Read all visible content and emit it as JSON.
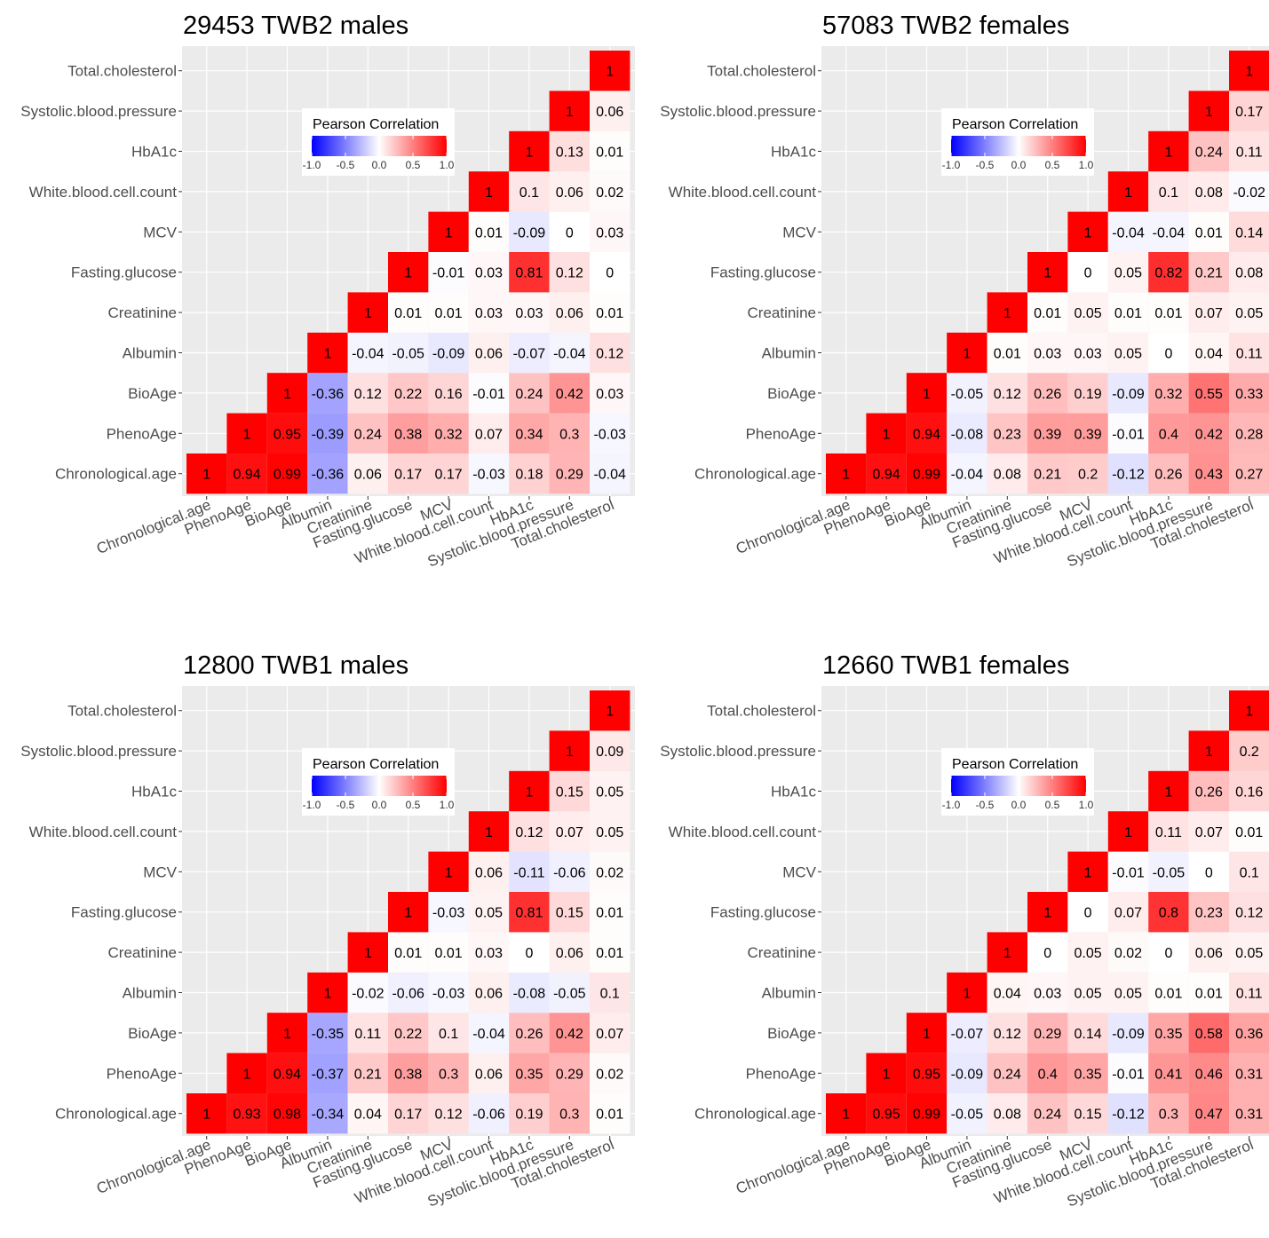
{
  "chart_data": [
    {
      "type": "heatmap",
      "title": "29453 TWB2 males",
      "variables": [
        "Chronological.age",
        "PhenoAge",
        "BioAge",
        "Albumin",
        "Creatinine",
        "Fasting.glucose",
        "MCV",
        "White.blood.cell.count",
        "HbA1c",
        "Systolic.blood.pressure",
        "Total.cholesterol"
      ],
      "values": [
        [
          "1",
          "0.94",
          "0.99",
          "-0.36",
          "0.06",
          "0.17",
          "0.17",
          "-0.03",
          "0.18",
          "0.29",
          "-0.04"
        ],
        [
          null,
          "1",
          "0.95",
          "-0.39",
          "0.24",
          "0.38",
          "0.32",
          "0.07",
          "0.34",
          "0.3",
          "-0.03"
        ],
        [
          null,
          null,
          "1",
          "-0.36",
          "0.12",
          "0.22",
          "0.16",
          "-0.01",
          "0.24",
          "0.42",
          "0.03"
        ],
        [
          null,
          null,
          null,
          "1",
          "-0.04",
          "-0.05",
          "-0.09",
          "0.06",
          "-0.07",
          "-0.04",
          "0.12"
        ],
        [
          null,
          null,
          null,
          null,
          "1",
          "0.01",
          "0.01",
          "0.03",
          "0.03",
          "0.06",
          "0.01"
        ],
        [
          null,
          null,
          null,
          null,
          null,
          "1",
          "-0.01",
          "0.03",
          "0.81",
          "0.12",
          "0"
        ],
        [
          null,
          null,
          null,
          null,
          null,
          null,
          "1",
          "0.01",
          "-0.09",
          "0",
          "0.03"
        ],
        [
          null,
          null,
          null,
          null,
          null,
          null,
          null,
          "1",
          "0.1",
          "0.06",
          "0.02"
        ],
        [
          null,
          null,
          null,
          null,
          null,
          null,
          null,
          null,
          "1",
          "0.13",
          "0.01"
        ],
        [
          null,
          null,
          null,
          null,
          null,
          null,
          null,
          null,
          null,
          "1",
          "0.06"
        ],
        [
          null,
          null,
          null,
          null,
          null,
          null,
          null,
          null,
          null,
          null,
          "1"
        ]
      ],
      "legend": {
        "title": "Pearson Correlation",
        "ticks": [
          "-1.0",
          "-0.5",
          "0.0",
          "0.5",
          "1.0"
        ],
        "range": [
          -1,
          1
        ]
      }
    },
    {
      "type": "heatmap",
      "title": "57083 TWB2 females",
      "variables": [
        "Chronological.age",
        "PhenoAge",
        "BioAge",
        "Albumin",
        "Creatinine",
        "Fasting.glucose",
        "MCV",
        "White.blood.cell.count",
        "HbA1c",
        "Systolic.blood.pressure",
        "Total.cholesterol"
      ],
      "values": [
        [
          "1",
          "0.94",
          "0.99",
          "-0.04",
          "0.08",
          "0.21",
          "0.2",
          "-0.12",
          "0.26",
          "0.43",
          "0.27"
        ],
        [
          null,
          "1",
          "0.94",
          "-0.08",
          "0.23",
          "0.39",
          "0.39",
          "-0.01",
          "0.4",
          "0.42",
          "0.28"
        ],
        [
          null,
          null,
          "1",
          "-0.05",
          "0.12",
          "0.26",
          "0.19",
          "-0.09",
          "0.32",
          "0.55",
          "0.33"
        ],
        [
          null,
          null,
          null,
          "1",
          "0.01",
          "0.03",
          "0.03",
          "0.05",
          "0",
          "0.04",
          "0.11"
        ],
        [
          null,
          null,
          null,
          null,
          "1",
          "0.01",
          "0.05",
          "0.01",
          "0.01",
          "0.07",
          "0.05"
        ],
        [
          null,
          null,
          null,
          null,
          null,
          "1",
          "0",
          "0.05",
          "0.82",
          "0.21",
          "0.08"
        ],
        [
          null,
          null,
          null,
          null,
          null,
          null,
          "1",
          "-0.04",
          "-0.04",
          "0.01",
          "0.14"
        ],
        [
          null,
          null,
          null,
          null,
          null,
          null,
          null,
          "1",
          "0.1",
          "0.08",
          "-0.02"
        ],
        [
          null,
          null,
          null,
          null,
          null,
          null,
          null,
          null,
          "1",
          "0.24",
          "0.11"
        ],
        [
          null,
          null,
          null,
          null,
          null,
          null,
          null,
          null,
          null,
          "1",
          "0.17"
        ],
        [
          null,
          null,
          null,
          null,
          null,
          null,
          null,
          null,
          null,
          null,
          "1"
        ]
      ],
      "legend": {
        "title": "Pearson Correlation",
        "ticks": [
          "-1.0",
          "-0.5",
          "0.0",
          "0.5",
          "1.0"
        ],
        "range": [
          -1,
          1
        ]
      }
    },
    {
      "type": "heatmap",
      "title": "12800 TWB1 males",
      "variables": [
        "Chronological.age",
        "PhenoAge",
        "BioAge",
        "Albumin",
        "Creatinine",
        "Fasting.glucose",
        "MCV",
        "White.blood.cell.count",
        "HbA1c",
        "Systolic.blood.pressure",
        "Total.cholesterol"
      ],
      "values": [
        [
          "1",
          "0.93",
          "0.98",
          "-0.34",
          "0.04",
          "0.17",
          "0.12",
          "-0.06",
          "0.19",
          "0.3",
          "0.01"
        ],
        [
          null,
          "1",
          "0.94",
          "-0.37",
          "0.21",
          "0.38",
          "0.3",
          "0.06",
          "0.35",
          "0.29",
          "0.02"
        ],
        [
          null,
          null,
          "1",
          "-0.35",
          "0.11",
          "0.22",
          "0.1",
          "-0.04",
          "0.26",
          "0.42",
          "0.07"
        ],
        [
          null,
          null,
          null,
          "1",
          "-0.02",
          "-0.06",
          "-0.03",
          "0.06",
          "-0.08",
          "-0.05",
          "0.1"
        ],
        [
          null,
          null,
          null,
          null,
          "1",
          "0.01",
          "0.01",
          "0.03",
          "0",
          "0.06",
          "0.01"
        ],
        [
          null,
          null,
          null,
          null,
          null,
          "1",
          "-0.03",
          "0.05",
          "0.81",
          "0.15",
          "0.01"
        ],
        [
          null,
          null,
          null,
          null,
          null,
          null,
          "1",
          "0.06",
          "-0.11",
          "-0.06",
          "0.02"
        ],
        [
          null,
          null,
          null,
          null,
          null,
          null,
          null,
          "1",
          "0.12",
          "0.07",
          "0.05"
        ],
        [
          null,
          null,
          null,
          null,
          null,
          null,
          null,
          null,
          "1",
          "0.15",
          "0.05"
        ],
        [
          null,
          null,
          null,
          null,
          null,
          null,
          null,
          null,
          null,
          "1",
          "0.09"
        ],
        [
          null,
          null,
          null,
          null,
          null,
          null,
          null,
          null,
          null,
          null,
          "1"
        ]
      ],
      "legend": {
        "title": "Pearson Correlation",
        "ticks": [
          "-1.0",
          "-0.5",
          "0.0",
          "0.5",
          "1.0"
        ],
        "range": [
          -1,
          1
        ]
      }
    },
    {
      "type": "heatmap",
      "title": "12660 TWB1 females",
      "variables": [
        "Chronological.age",
        "PhenoAge",
        "BioAge",
        "Albumin",
        "Creatinine",
        "Fasting.glucose",
        "MCV",
        "White.blood.cell.count",
        "HbA1c",
        "Systolic.blood.pressure",
        "Total.cholesterol"
      ],
      "values": [
        [
          "1",
          "0.95",
          "0.99",
          "-0.05",
          "0.08",
          "0.24",
          "0.15",
          "-0.12",
          "0.3",
          "0.47",
          "0.31"
        ],
        [
          null,
          "1",
          "0.95",
          "-0.09",
          "0.24",
          "0.4",
          "0.35",
          "-0.01",
          "0.41",
          "0.46",
          "0.31"
        ],
        [
          null,
          null,
          "1",
          "-0.07",
          "0.12",
          "0.29",
          "0.14",
          "-0.09",
          "0.35",
          "0.58",
          "0.36"
        ],
        [
          null,
          null,
          null,
          "1",
          "0.04",
          "0.03",
          "0.05",
          "0.05",
          "0.01",
          "0.01",
          "0.11"
        ],
        [
          null,
          null,
          null,
          null,
          "1",
          "0",
          "0.05",
          "0.02",
          "0",
          "0.06",
          "0.05"
        ],
        [
          null,
          null,
          null,
          null,
          null,
          "1",
          "0",
          "0.07",
          "0.8",
          "0.23",
          "0.12"
        ],
        [
          null,
          null,
          null,
          null,
          null,
          null,
          "1",
          "-0.01",
          "-0.05",
          "0",
          "0.1"
        ],
        [
          null,
          null,
          null,
          null,
          null,
          null,
          null,
          "1",
          "0.11",
          "0.07",
          "0.01"
        ],
        [
          null,
          null,
          null,
          null,
          null,
          null,
          null,
          null,
          "1",
          "0.26",
          "0.16"
        ],
        [
          null,
          null,
          null,
          null,
          null,
          null,
          null,
          null,
          null,
          "1",
          "0.2"
        ],
        [
          null,
          null,
          null,
          null,
          null,
          null,
          null,
          null,
          null,
          null,
          "1"
        ]
      ],
      "legend": {
        "title": "Pearson Correlation",
        "ticks": [
          "-1.0",
          "-0.5",
          "0.0",
          "0.5",
          "1.0"
        ],
        "range": [
          -1,
          1
        ]
      }
    }
  ],
  "colors": {
    "low": "#0000ff",
    "mid": "#ffffff",
    "high": "#ff0000",
    "panel_bg": "#ebebeb",
    "grid": "#ffffff"
  }
}
